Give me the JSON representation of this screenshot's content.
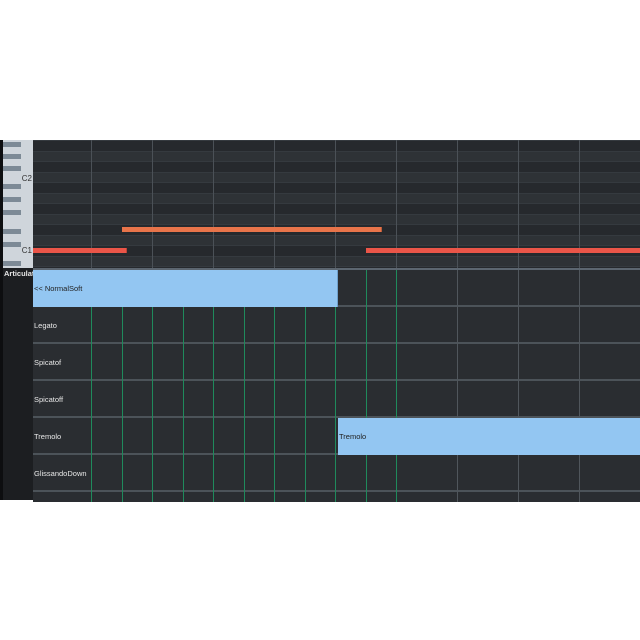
{
  "keyboard": {
    "labels": [
      "C2",
      "C1"
    ]
  },
  "articulation_header": "Articulation",
  "lanes": [
    "",
    "Legato",
    "Spicatof",
    "Spicatoff",
    "Tremolo",
    "GlissandoDown"
  ],
  "articulation_blocks": [
    {
      "label": "<< NormalSoft",
      "lane": 0,
      "start_beat": 0,
      "end_beat": 5
    },
    {
      "label": "Tremolo",
      "lane": 4,
      "start_beat": 5,
      "end_beat": 10
    }
  ],
  "notes": [
    {
      "pitch": "D1",
      "start_beat": 1.5,
      "end_beat": 5.75,
      "color": "#e8744a",
      "segment_beats": 0.25
    },
    {
      "pitch": "C1",
      "start_beat": 0.05,
      "end_beat": 1.57,
      "color": "#ea5548"
    },
    {
      "pitch": "C1",
      "start_beat": 5.5,
      "end_beat": 10,
      "color": "#ea5548"
    }
  ],
  "colors": {
    "background": "#2a2d31",
    "block": "#93c6f2",
    "grid_green": "#1f8a5c"
  }
}
